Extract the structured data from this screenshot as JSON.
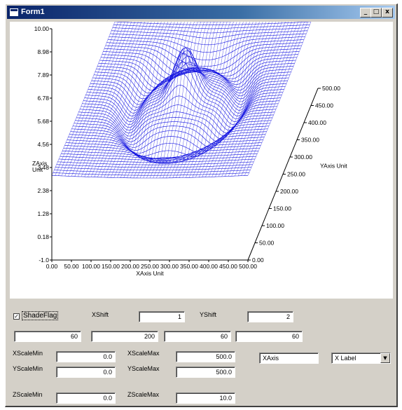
{
  "window": {
    "title": "Form1",
    "minimize_label": "_",
    "maximize_label": "□",
    "close_label": "x"
  },
  "chart_data": {
    "type": "surface",
    "xlabel": "XAxis Unit",
    "ylabel": "YAxis Unit",
    "zlabel_line1": "ZAxis",
    "zlabel_line2": "Unit",
    "z_ticks": [
      "10.00",
      "8.98",
      "7.89",
      "6.78",
      "5.68",
      "4.56",
      "3.48",
      "2.38",
      "1.28",
      "0.18",
      "-1.0"
    ],
    "y_ticks": [
      "500.00",
      "450.00",
      "400.00",
      "350.00",
      "300.00",
      "250.00",
      "200.00",
      "150.00",
      "100.00",
      "50.00",
      "0.00"
    ],
    "x_ticks": [
      "0.00",
      "50.00",
      "100.00",
      "150.00",
      "200.00",
      "250.00",
      "300.00",
      "350.00",
      "400.00",
      "450.00",
      "500.00"
    ],
    "xlim": [
      0,
      500
    ],
    "ylim": [
      0,
      500
    ],
    "zlim": [
      -1,
      10
    ],
    "line_color": "#1010e0"
  },
  "controls": {
    "shade_flag_label": "ShadeFlag",
    "shade_flag_checked": true,
    "xshift_label": "XShift",
    "xshift_value": "1",
    "yshift_label": "YShift",
    "yshift_value": "2",
    "row_values": [
      "60",
      "200",
      "60",
      "60"
    ],
    "xscale_min_label": "XScaleMin",
    "xscale_min_value": "0.0",
    "xscale_max_label": "XScaleMax",
    "xscale_max_value": "500.0",
    "yscale_min_label": "YScaleMin",
    "yscale_min_value": "0.0",
    "yscale_max_label": "YScaleMax",
    "yscale_max_value": "500.0",
    "zscale_min_label": "ZScaleMin",
    "zscale_min_value": "0.0",
    "zscale_max_label": "ZScaleMax",
    "zscale_max_value": "10.0",
    "axis_field_value": "XAxis",
    "label_combo_value": "X Label"
  }
}
